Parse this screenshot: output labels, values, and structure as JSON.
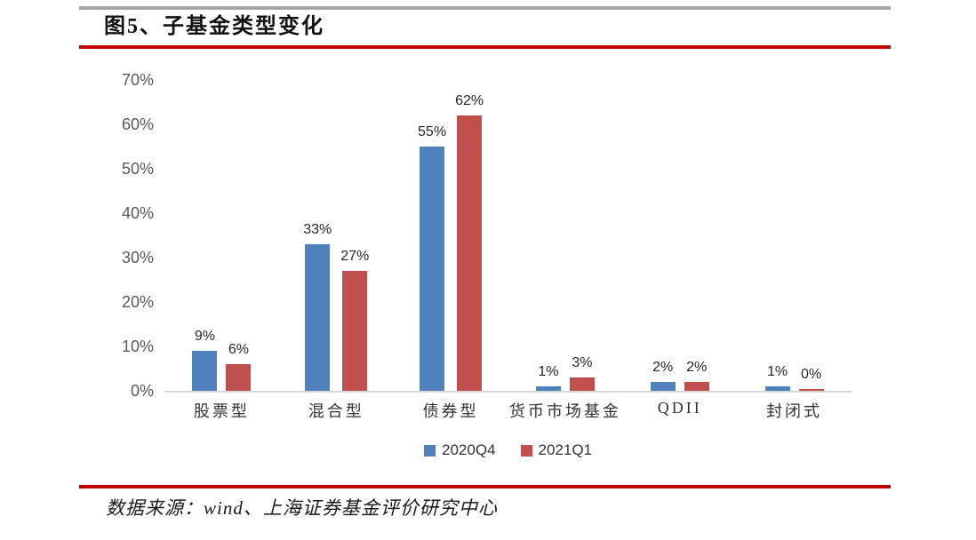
{
  "header": {
    "title": "图5、子基金类型变化"
  },
  "footer": {
    "source": "数据来源：wind、上海证券基金评价研究中心"
  },
  "colors": {
    "series_2020q4": "#4f81bd",
    "series_2021q1": "#c0504d",
    "title_rule": "#c00000",
    "footer_rule": "#c00000",
    "top_rule": "#a6a6a6",
    "axis_line": "#d6d6d6"
  },
  "chart_data": {
    "type": "bar",
    "title": "图5、子基金类型变化",
    "categories": [
      "股票型",
      "混合型",
      "债券型",
      "货币市场基金",
      "QDII",
      "封闭式"
    ],
    "series": [
      {
        "name": "2020Q4",
        "color": "#4f81bd",
        "values": [
          9,
          33,
          55,
          1,
          2,
          1
        ]
      },
      {
        "name": "2021Q1",
        "color": "#c0504d",
        "values": [
          6,
          27,
          62,
          3,
          2,
          0
        ]
      }
    ],
    "value_suffix": "%",
    "xlabel": "",
    "ylabel": "",
    "ylim": [
      0,
      70
    ],
    "ytick_step": 10,
    "yticks": [
      "0%",
      "10%",
      "20%",
      "30%",
      "40%",
      "50%",
      "60%",
      "70%"
    ],
    "grid": false,
    "data_labels": true,
    "legend_position": "bottom"
  }
}
